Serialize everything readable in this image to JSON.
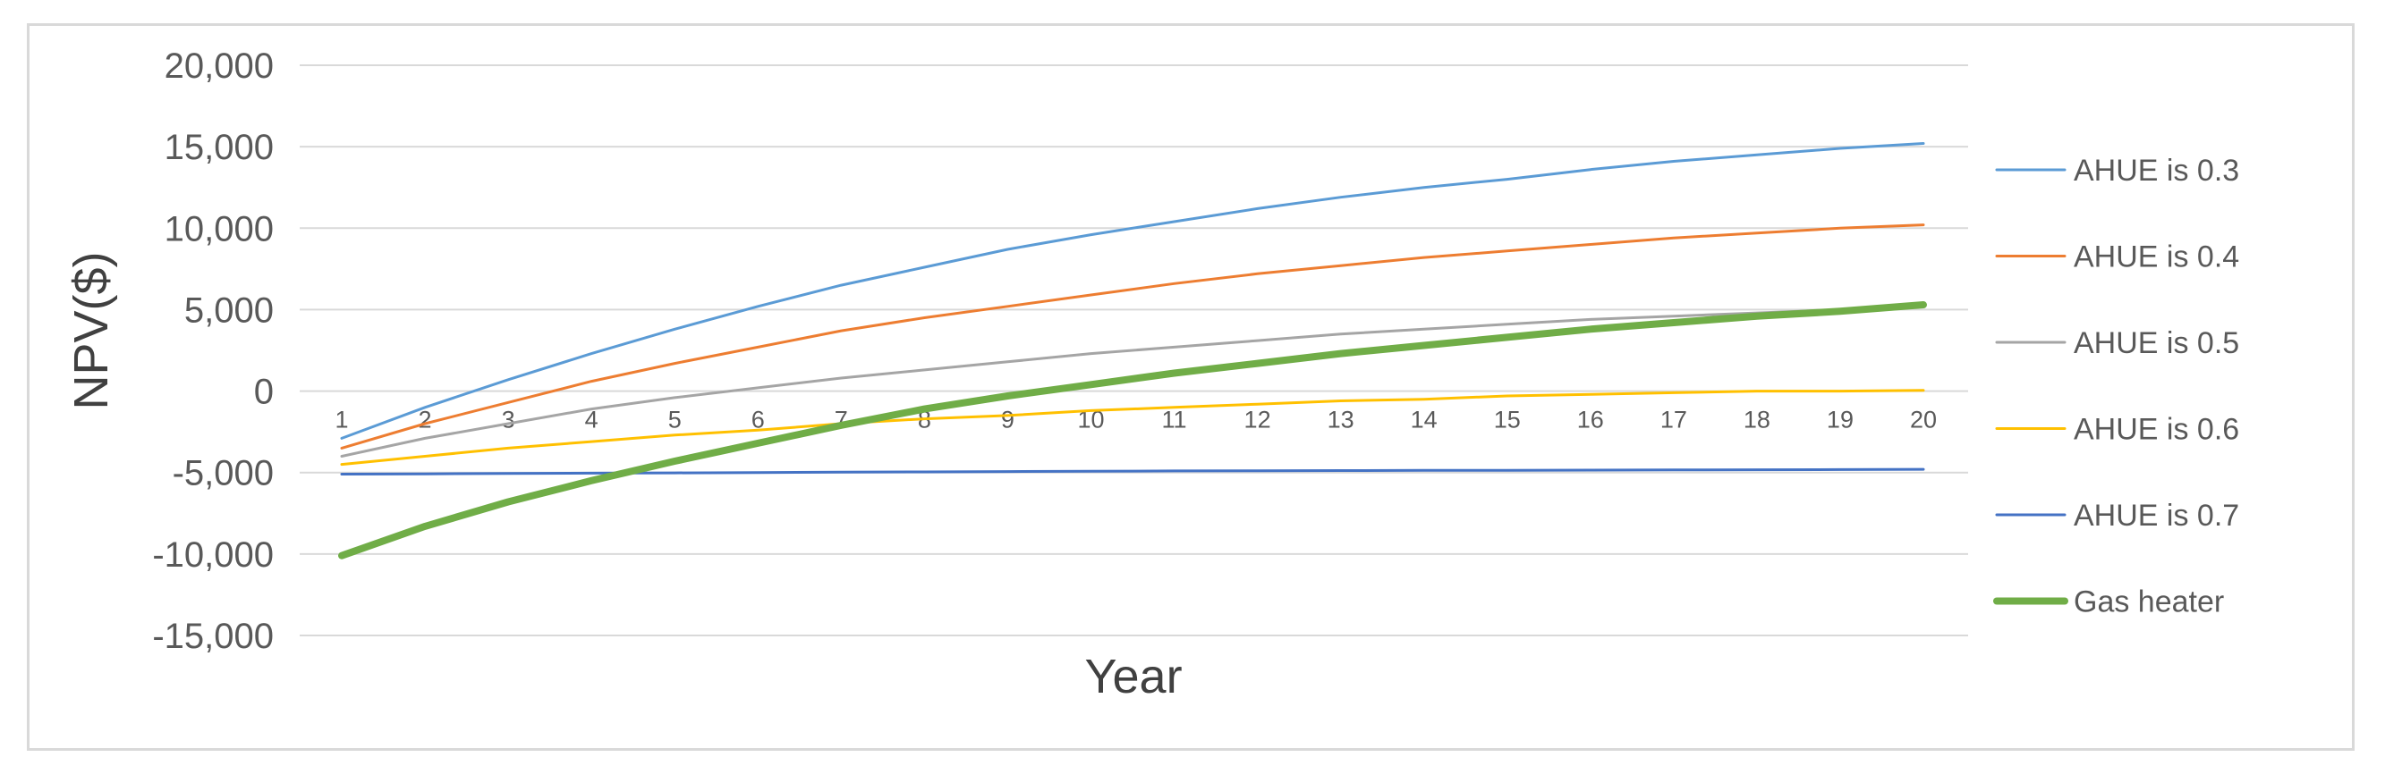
{
  "chart_data": {
    "type": "line",
    "title": "",
    "xlabel": "Year",
    "ylabel": "NPV($)",
    "categories": [
      "1",
      "2",
      "3",
      "4",
      "5",
      "6",
      "7",
      "8",
      "9",
      "10",
      "11",
      "12",
      "13",
      "14",
      "15",
      "16",
      "17",
      "18",
      "19",
      "20"
    ],
    "ylim": [
      -15000,
      20000
    ],
    "yticks": [
      20000,
      15000,
      10000,
      5000,
      0,
      -5000,
      -10000,
      -15000
    ],
    "ytick_labels": [
      "20,000",
      "15,000",
      "10,000",
      "5,000",
      "0",
      "-5,000",
      "-10,000",
      "-15,000"
    ],
    "grid": true,
    "legend_position": "right",
    "series": [
      {
        "name": "AHUE is 0.3",
        "color": "#5b9bd5",
        "width": 3,
        "values": [
          -2900,
          -1000,
          700,
          2300,
          3800,
          5200,
          6500,
          7600,
          8700,
          9600,
          10400,
          11200,
          11900,
          12500,
          13000,
          13600,
          14100,
          14500,
          14900,
          15200
        ]
      },
      {
        "name": "AHUE is 0.4",
        "color": "#ed7d31",
        "width": 3,
        "values": [
          -3500,
          -2000,
          -700,
          600,
          1700,
          2700,
          3700,
          4500,
          5200,
          5900,
          6600,
          7200,
          7700,
          8200,
          8600,
          9000,
          9400,
          9700,
          10000,
          10200
        ]
      },
      {
        "name": "AHUE is 0.5",
        "color": "#a5a5a5",
        "width": 3,
        "values": [
          -4000,
          -2900,
          -2000,
          -1100,
          -400,
          200,
          800,
          1300,
          1800,
          2300,
          2700,
          3100,
          3500,
          3800,
          4100,
          4400,
          4600,
          4800,
          5000,
          5200
        ]
      },
      {
        "name": "AHUE is 0.6",
        "color": "#ffc000",
        "width": 3,
        "values": [
          -4500,
          -4000,
          -3500,
          -3100,
          -2700,
          -2400,
          -2000,
          -1700,
          -1500,
          -1200,
          -1000,
          -800,
          -600,
          -500,
          -300,
          -200,
          -100,
          0,
          0,
          50
        ]
      },
      {
        "name": "AHUE is 0.7",
        "color": "#4472c4",
        "width": 3,
        "values": [
          -5100,
          -5080,
          -5060,
          -5040,
          -5020,
          -5000,
          -4980,
          -4960,
          -4940,
          -4920,
          -4900,
          -4890,
          -4880,
          -4870,
          -4860,
          -4850,
          -4840,
          -4830,
          -4820,
          -4800
        ]
      },
      {
        "name": "Gas heater",
        "color": "#70ad47",
        "width": 8,
        "values": [
          -10100,
          -8300,
          -6800,
          -5500,
          -4300,
          -3200,
          -2100,
          -1100,
          -300,
          400,
          1100,
          1700,
          2300,
          2800,
          3300,
          3800,
          4200,
          4600,
          4900,
          5300
        ]
      }
    ]
  }
}
